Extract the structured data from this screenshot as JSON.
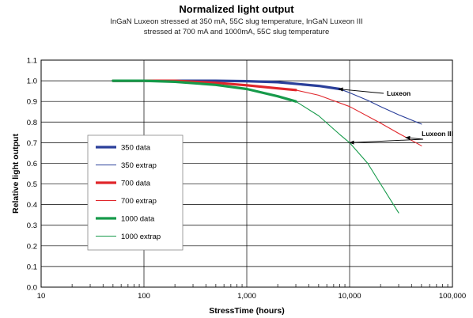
{
  "chart_data": {
    "type": "line",
    "title": "Normalized light output",
    "subtitle_lines": [
      "InGaN Luxeon stressed at 350 mA, 55C slug temperature, InGaN Luxeon III",
      "stressed at 700 mA and 1000mA, 55C  slug temperature"
    ],
    "xlabel": "StressTime (hours)",
    "ylabel": "Relative light output",
    "xscale": "log",
    "xlim": [
      10,
      100000
    ],
    "ylim": [
      0,
      1.1
    ],
    "x_tick_values": [
      10,
      100,
      1000,
      10000,
      100000
    ],
    "x_tick_labels": [
      "10",
      "100",
      "1,000",
      "10,000",
      "100,000"
    ],
    "y_tick_values": [
      0,
      0.1,
      0.2,
      0.3,
      0.4,
      0.5,
      0.6,
      0.7,
      0.8,
      0.9,
      1.0,
      1.1
    ],
    "y_tick_labels": [
      "0.0",
      "0.1",
      "0.2",
      "0.3",
      "0.4",
      "0.5",
      "0.6",
      "0.7",
      "0.8",
      "0.9",
      "1.0",
      "1.1"
    ],
    "grid": true,
    "legend_position": "left-center",
    "series": [
      {
        "name": "350 data",
        "color": "#2a3f9a",
        "style": "thick",
        "x": [
          50,
          100,
          200,
          500,
          1000,
          2000,
          5000,
          8000
        ],
        "y": [
          1.0,
          1.0,
          1.0,
          1.0,
          0.998,
          0.993,
          0.975,
          0.96
        ]
      },
      {
        "name": "350 extrap",
        "color": "#2a3f9a",
        "style": "thin",
        "x": [
          8000,
          10000,
          15000,
          20000,
          30000,
          50000
        ],
        "y": [
          0.96,
          0.942,
          0.905,
          0.875,
          0.835,
          0.79
        ]
      },
      {
        "name": "700 data",
        "color": "#e0262b",
        "style": "thick",
        "x": [
          50,
          100,
          200,
          500,
          1000,
          2000,
          3000
        ],
        "y": [
          1.0,
          1.0,
          1.0,
          0.99,
          0.978,
          0.963,
          0.955
        ]
      },
      {
        "name": "700 extrap",
        "color": "#e0262b",
        "style": "thin",
        "x": [
          3000,
          5000,
          10000,
          20000,
          30000,
          50000
        ],
        "y": [
          0.955,
          0.93,
          0.875,
          0.795,
          0.745,
          0.685
        ]
      },
      {
        "name": "1000 data",
        "color": "#169a4a",
        "style": "thick",
        "x": [
          50,
          100,
          200,
          500,
          1000,
          2000,
          3000
        ],
        "y": [
          1.0,
          1.0,
          0.995,
          0.98,
          0.96,
          0.925,
          0.9
        ]
      },
      {
        "name": "1000 extrap",
        "color": "#169a4a",
        "style": "thin",
        "x": [
          3000,
          5000,
          8000,
          10000,
          15000,
          20000,
          30000
        ],
        "y": [
          0.9,
          0.83,
          0.74,
          0.7,
          0.6,
          0.5,
          0.36
        ]
      }
    ],
    "annotations": [
      {
        "text": "Luxeon",
        "arrow_to": {
          "x": 7800,
          "y": 0.96
        }
      },
      {
        "text": "Luxeon III",
        "arrow_to_list": [
          {
            "x": 35000,
            "y": 0.725
          },
          {
            "x": 10000,
            "y": 0.7
          }
        ]
      }
    ]
  }
}
